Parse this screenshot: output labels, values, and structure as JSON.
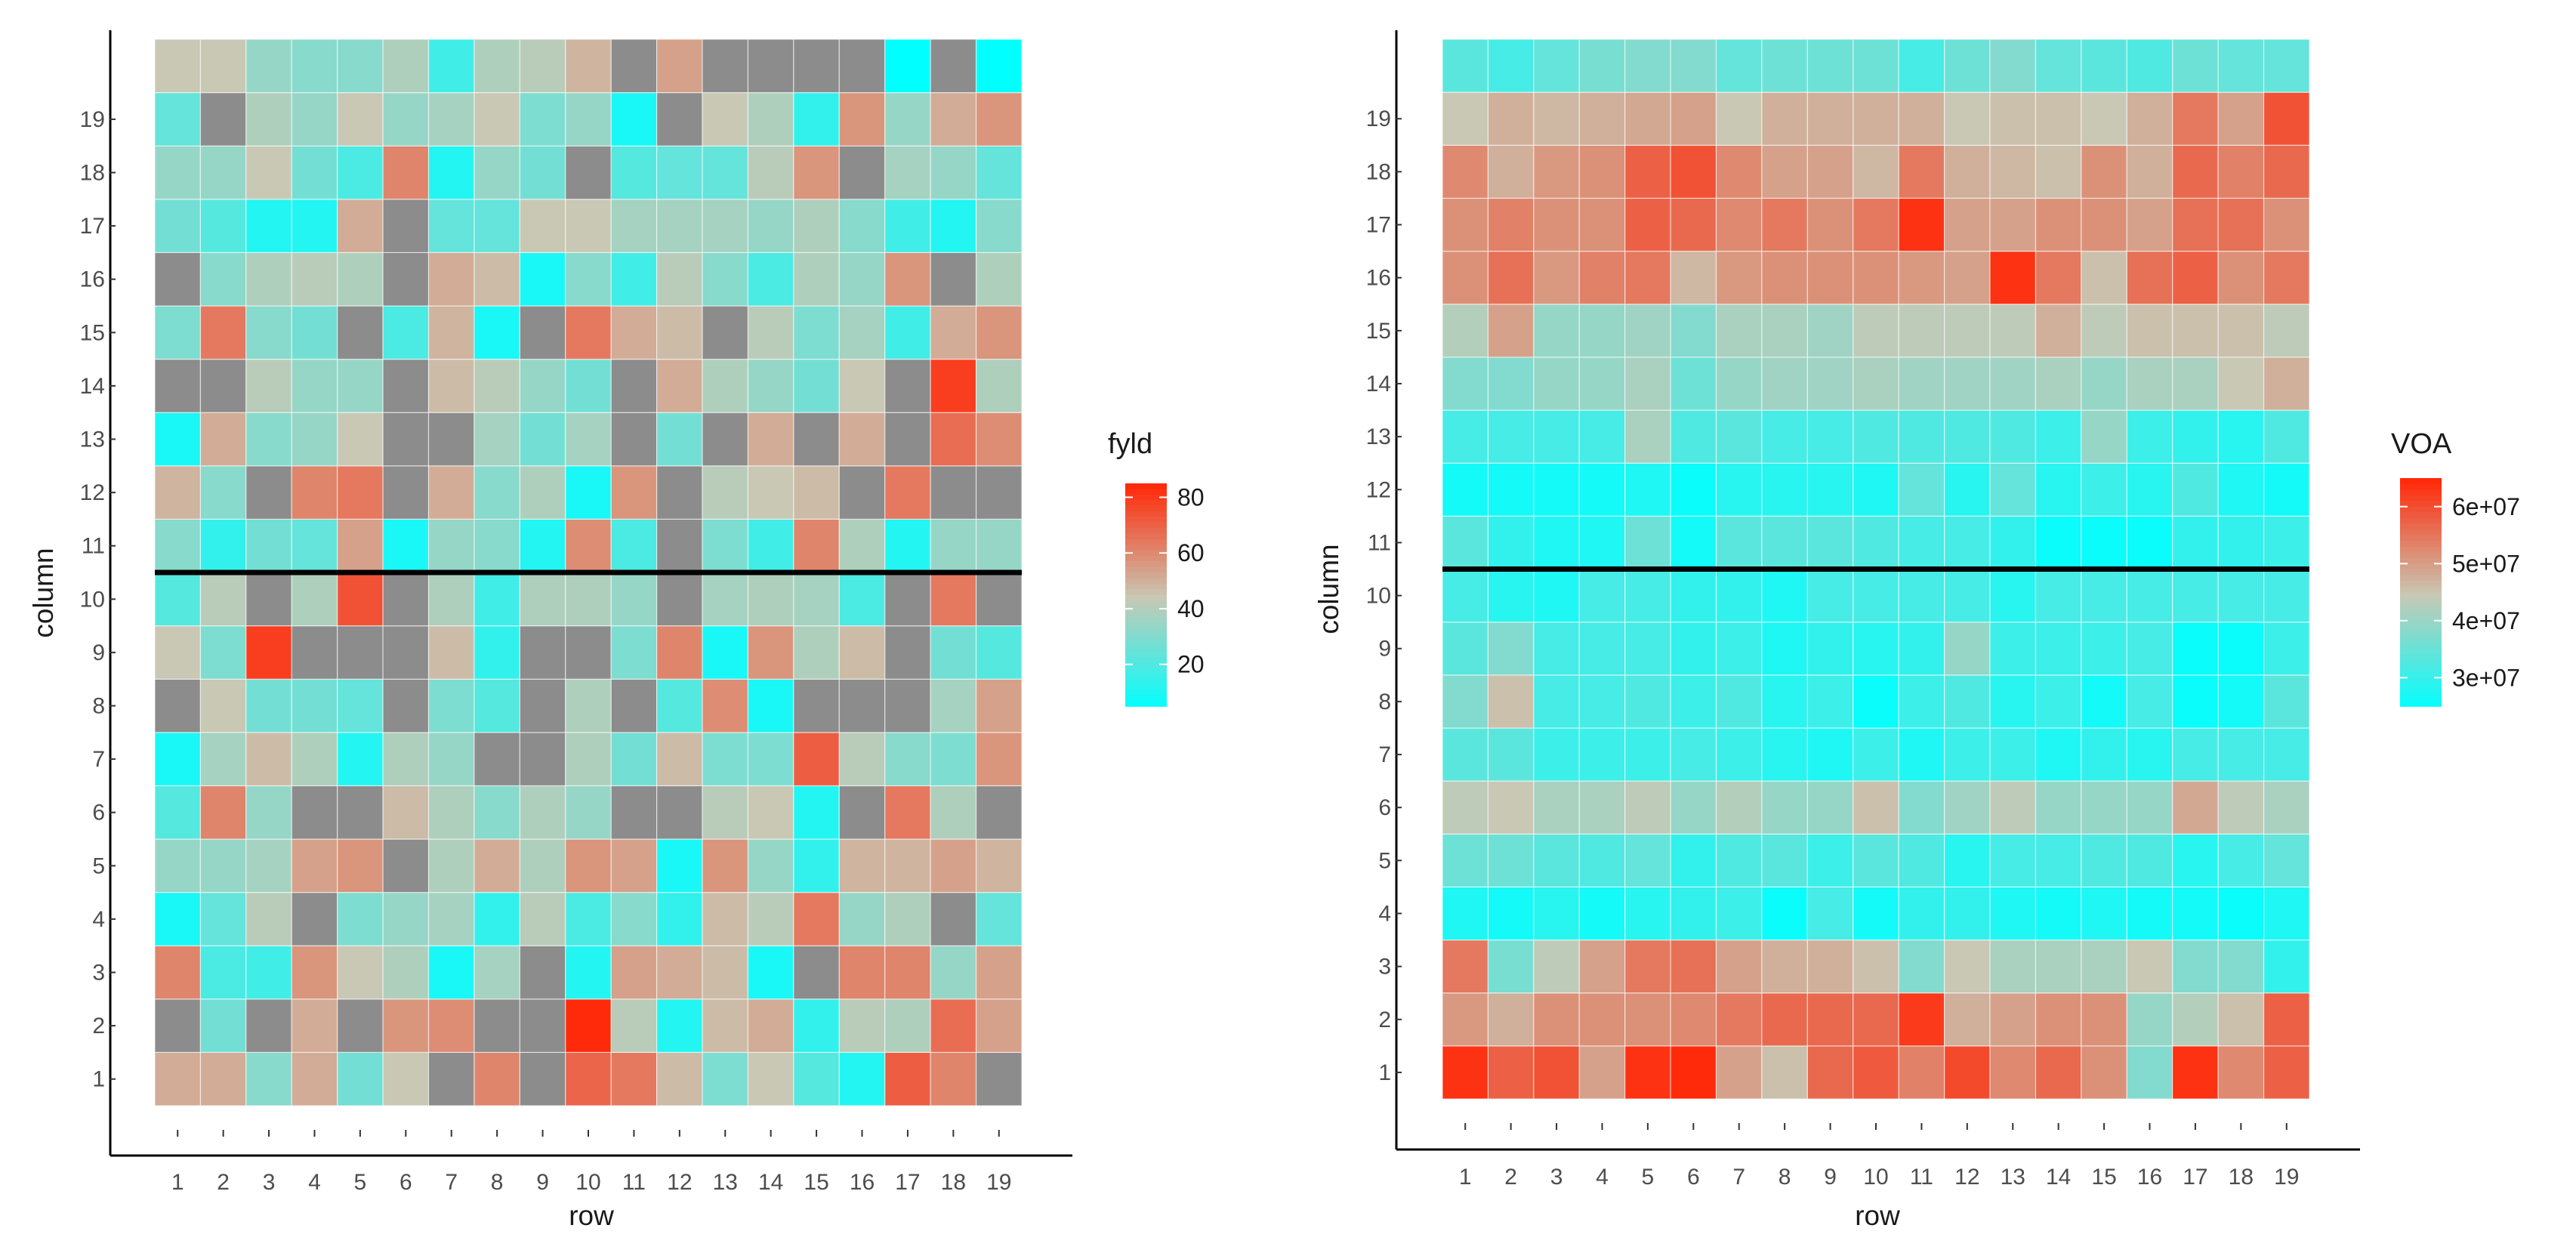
{
  "chart_data": [
    {
      "type": "heatmap",
      "title": "",
      "xlabel": "row",
      "ylabel": "column",
      "x_ticks": [
        "1",
        "2",
        "3",
        "4",
        "5",
        "6",
        "7",
        "8",
        "9",
        "10",
        "11",
        "12",
        "13",
        "14",
        "15",
        "16",
        "17",
        "18",
        "19"
      ],
      "y_ticks": [
        "1",
        "2",
        "3",
        "4",
        "5",
        "6",
        "7",
        "8",
        "9",
        "10",
        "11",
        "12",
        "13",
        "14",
        "15",
        "16",
        "17",
        "18",
        "19"
      ],
      "y_rows_note": "row 0 = column 1 (bottom), row 18 = column 19, row 19 = unlabeled top row; null = missing (grey)",
      "divider_line_y": 10.5,
      "legend": {
        "title": "fyld",
        "breaks": [
          20,
          40,
          60,
          80
        ],
        "labels": [
          "20",
          "40",
          "60",
          "80"
        ],
        "range": [
          5,
          85
        ]
      },
      "colors": {
        "low": "#00ffff",
        "mid": "#c8c8b4",
        "high": "#ff2a0a",
        "missing": "#8c8c8c",
        "divider": "#000000"
      },
      "values": [
        [
          52,
          52,
          32,
          52,
          28,
          45,
          null,
          62,
          null,
          70,
          65,
          48,
          30,
          45,
          22,
          12,
          72,
          62,
          null
        ],
        [
          null,
          28,
          null,
          52,
          null,
          58,
          60,
          null,
          null,
          85,
          42,
          12,
          48,
          52,
          15,
          42,
          40,
          68,
          55
        ],
        [
          62,
          20,
          18,
          58,
          45,
          40,
          10,
          38,
          null,
          12,
          55,
          52,
          48,
          10,
          null,
          62,
          62,
          35,
          55
        ],
        [
          10,
          25,
          42,
          null,
          30,
          35,
          38,
          15,
          42,
          20,
          32,
          15,
          48,
          42,
          65,
          35,
          40,
          null,
          25
        ],
        [
          35,
          35,
          38,
          55,
          58,
          null,
          40,
          52,
          40,
          58,
          55,
          10,
          58,
          35,
          15,
          50,
          50,
          55,
          50
        ],
        [
          22,
          62,
          35,
          null,
          null,
          48,
          40,
          32,
          40,
          35,
          null,
          null,
          42,
          45,
          12,
          null,
          65,
          40,
          null
        ],
        [
          10,
          38,
          48,
          40,
          12,
          40,
          35,
          null,
          null,
          40,
          28,
          48,
          30,
          30,
          72,
          42,
          32,
          30,
          58
        ],
        [
          null,
          45,
          28,
          28,
          25,
          null,
          30,
          22,
          null,
          40,
          null,
          22,
          60,
          10,
          null,
          null,
          null,
          38,
          55
        ],
        [
          45,
          30,
          80,
          null,
          null,
          null,
          48,
          15,
          null,
          null,
          30,
          62,
          10,
          58,
          40,
          48,
          null,
          28,
          22
        ],
        [
          22,
          42,
          null,
          40,
          75,
          null,
          40,
          18,
          40,
          40,
          35,
          null,
          38,
          40,
          38,
          20,
          null,
          65,
          null
        ],
        [
          32,
          15,
          28,
          25,
          55,
          10,
          35,
          32,
          12,
          60,
          20,
          null,
          30,
          18,
          62,
          40,
          12,
          35,
          35
        ],
        [
          50,
          32,
          null,
          62,
          65,
          null,
          52,
          32,
          40,
          10,
          58,
          null,
          42,
          45,
          48,
          null,
          65,
          null,
          null
        ],
        [
          10,
          52,
          32,
          35,
          45,
          null,
          null,
          38,
          28,
          38,
          null,
          28,
          null,
          52,
          null,
          52,
          null,
          68,
          60
        ],
        [
          null,
          null,
          42,
          35,
          35,
          null,
          48,
          42,
          35,
          28,
          null,
          52,
          40,
          35,
          28,
          45,
          null,
          80,
          40
        ],
        [
          30,
          65,
          32,
          28,
          null,
          20,
          50,
          10,
          null,
          65,
          52,
          48,
          null,
          42,
          30,
          38,
          18,
          52,
          58
        ],
        [
          null,
          32,
          40,
          42,
          40,
          null,
          52,
          48,
          10,
          32,
          18,
          42,
          32,
          20,
          40,
          35,
          58,
          null,
          40
        ],
        [
          28,
          22,
          12,
          12,
          52,
          null,
          25,
          25,
          45,
          45,
          38,
          38,
          38,
          35,
          40,
          32,
          18,
          12,
          32
        ],
        [
          35,
          35,
          45,
          28,
          20,
          62,
          12,
          35,
          28,
          null,
          22,
          25,
          25,
          42,
          58,
          null,
          38,
          35,
          25
        ],
        [
          25,
          null,
          40,
          35,
          45,
          35,
          38,
          45,
          30,
          35,
          10,
          null,
          45,
          40,
          15,
          58,
          35,
          52,
          58
        ],
        [
          45,
          45,
          35,
          32,
          32,
          40,
          18,
          40,
          42,
          50,
          null,
          55,
          null,
          null,
          null,
          null,
          5,
          null,
          5
        ]
      ]
    },
    {
      "type": "heatmap",
      "title": "",
      "xlabel": "row",
      "ylabel": "column",
      "x_ticks": [
        "1",
        "2",
        "3",
        "4",
        "5",
        "6",
        "7",
        "8",
        "9",
        "10",
        "11",
        "12",
        "13",
        "14",
        "15",
        "16",
        "17",
        "18",
        "19"
      ],
      "y_ticks": [
        "1",
        "2",
        "3",
        "4",
        "5",
        "6",
        "7",
        "8",
        "9",
        "10",
        "11",
        "12",
        "13",
        "14",
        "15",
        "16",
        "17",
        "18",
        "19"
      ],
      "y_rows_note": "row 0 = column 1 (bottom), row 18 = column 19, row 19 = unlabeled top row",
      "divider_line_y": 10.5,
      "legend": {
        "title": "VOA",
        "breaks": [
          30000000,
          40000000,
          50000000,
          60000000
        ],
        "labels": [
          "3e+07",
          "4e+07",
          "5e+07",
          "6e+07"
        ],
        "range": [
          25000000,
          65000000
        ]
      },
      "colors": {
        "low": "#00ffff",
        "mid": "#c8c8b4",
        "high": "#ff2a0a",
        "divider": "#000000"
      },
      "values": [
        [
          64,
          58,
          60,
          50,
          64,
          65,
          50,
          46,
          57,
          59,
          54,
          61,
          53,
          57,
          52,
          38,
          64,
          53,
          58
        ],
        [
          51,
          48,
          52,
          52,
          52,
          53,
          55,
          57,
          57,
          57,
          63,
          48,
          50,
          52,
          52,
          40,
          43,
          46,
          58
        ],
        [
          55,
          37,
          44,
          50,
          55,
          56,
          50,
          48,
          48,
          46,
          38,
          45,
          42,
          42,
          42,
          45,
          38,
          38,
          30
        ],
        [
          28,
          27,
          29,
          27,
          29,
          30,
          31,
          26,
          32,
          27,
          30,
          30,
          28,
          27,
          28,
          27,
          27,
          26,
          28
        ],
        [
          36,
          36,
          34,
          33,
          35,
          30,
          33,
          34,
          31,
          34,
          33,
          29,
          32,
          32,
          33,
          33,
          29,
          32,
          35
        ],
        [
          44,
          45,
          42,
          42,
          44,
          40,
          43,
          40,
          40,
          46,
          38,
          41,
          44,
          40,
          40,
          40,
          49,
          44,
          42
        ],
        [
          34,
          34,
          31,
          31,
          31,
          32,
          31,
          29,
          28,
          31,
          28,
          31,
          31,
          28,
          30,
          29,
          32,
          32,
          32
        ],
        [
          38,
          46,
          32,
          32,
          33,
          31,
          33,
          29,
          31,
          26,
          31,
          33,
          29,
          31,
          27,
          32,
          26,
          27,
          34
        ],
        [
          34,
          38,
          32,
          32,
          32,
          30,
          31,
          28,
          30,
          29,
          30,
          40,
          31,
          31,
          31,
          32,
          26,
          26,
          31
        ],
        [
          32,
          29,
          28,
          32,
          32,
          30,
          30,
          28,
          32,
          32,
          32,
          32,
          29,
          32,
          32,
          32,
          32,
          32,
          32
        ],
        [
          34,
          30,
          28,
          28,
          36,
          27,
          34,
          34,
          34,
          33,
          32,
          32,
          30,
          26,
          26,
          26,
          30,
          30,
          31
        ],
        [
          27,
          27,
          27,
          27,
          28,
          26,
          29,
          29,
          29,
          28,
          35,
          29,
          35,
          29,
          31,
          29,
          33,
          28,
          27
        ],
        [
          32,
          32,
          32,
          32,
          42,
          33,
          34,
          32,
          32,
          33,
          33,
          33,
          33,
          31,
          40,
          31,
          30,
          29,
          33
        ],
        [
          38,
          38,
          40,
          40,
          42,
          36,
          40,
          41,
          41,
          42,
          41,
          41,
          41,
          42,
          40,
          42,
          42,
          45,
          48
        ],
        [
          43,
          50,
          40,
          40,
          41,
          38,
          42,
          42,
          41,
          44,
          44,
          44,
          44,
          48,
          44,
          46,
          46,
          46,
          44
        ],
        [
          52,
          56,
          51,
          54,
          55,
          47,
          51,
          52,
          52,
          52,
          51,
          50,
          64,
          55,
          46,
          56,
          58,
          52,
          55
        ],
        [
          52,
          54,
          52,
          52,
          58,
          57,
          53,
          55,
          52,
          55,
          64,
          50,
          50,
          52,
          52,
          50,
          56,
          56,
          52
        ],
        [
          53,
          48,
          51,
          52,
          58,
          60,
          53,
          50,
          50,
          47,
          55,
          48,
          47,
          46,
          52,
          48,
          57,
          54,
          57
        ],
        [
          45,
          48,
          47,
          48,
          49,
          50,
          45,
          48,
          48,
          48,
          48,
          45,
          46,
          46,
          45,
          48,
          55,
          50,
          60
        ],
        [
          34,
          32,
          35,
          37,
          38,
          38,
          35,
          36,
          36,
          36,
          32,
          36,
          38,
          35,
          34,
          33,
          36,
          35,
          35
        ]
      ]
    }
  ]
}
